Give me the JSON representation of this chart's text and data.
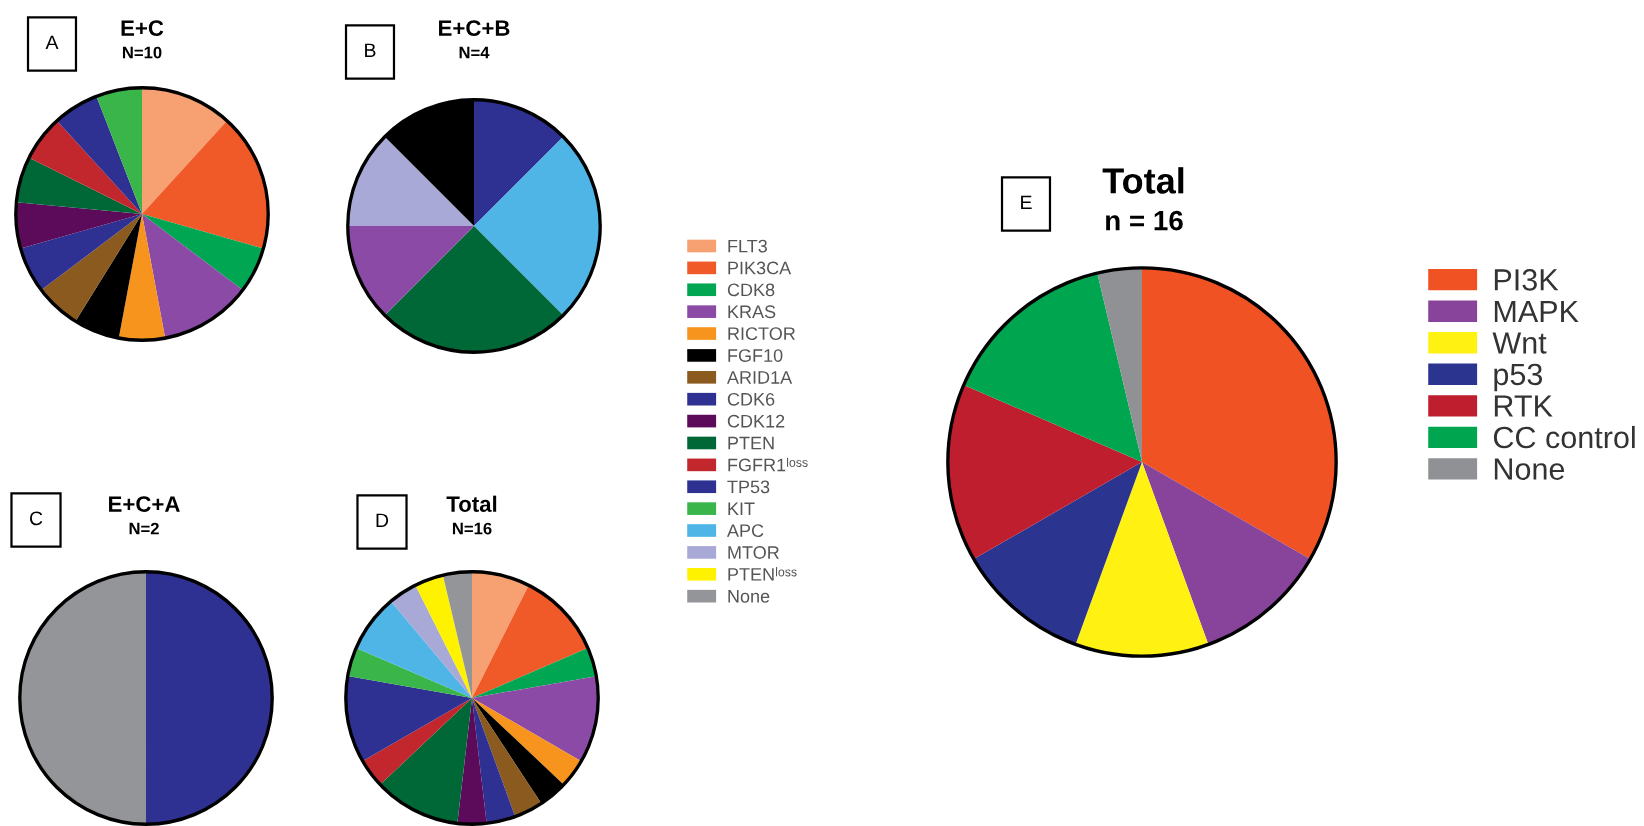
{
  "chart_data": [
    {
      "type": "pie",
      "title": "E+C",
      "subtitle": "N=10",
      "annotations": [
        "A"
      ],
      "categories": [
        null,
        null,
        null,
        null,
        null,
        null,
        null,
        null,
        null,
        null,
        null,
        null,
        null
      ],
      "values": [
        11.76,
        17.65,
        5.88,
        11.76,
        5.88,
        5.88,
        5.88,
        5.88,
        5.88,
        5.88,
        5.88,
        5.88,
        5.88
      ],
      "colors": [
        "#f7a072",
        "#f05a28",
        "#00a651",
        "#8b4aa6",
        "#f7941d",
        "#000000",
        "#8b5a1e",
        "#2e3192",
        "#5c0b5a",
        "#006837",
        "#c1272d",
        "#2e3192",
        "#39b54a"
      ]
    },
    {
      "type": "pie",
      "title": "E+C+B",
      "subtitle": "N=4",
      "annotations": [
        "B"
      ],
      "categories": [
        null,
        null,
        null,
        null,
        null,
        null
      ],
      "values": [
        12.5,
        25,
        25,
        12.5,
        12.5,
        12.5
      ],
      "colors": [
        "#2e3192",
        "#4fb4e6",
        "#006837",
        "#8b4aa6",
        "#a9a9d8",
        "#000000"
      ]
    },
    {
      "type": "pie",
      "title": "E+C+A",
      "subtitle": "N=2",
      "annotations": [
        "C"
      ],
      "categories": [
        null,
        null
      ],
      "values": [
        50,
        50
      ],
      "colors": [
        "#2e3192",
        "#939598"
      ]
    },
    {
      "type": "pie",
      "title": "Total",
      "subtitle": "N=16",
      "annotations": [
        "D"
      ],
      "legend": "right",
      "categories": [
        "FLT3",
        "PIK3CA",
        "CDK8",
        "KRAS",
        "RICTOR",
        "FGF10",
        "ARID1A",
        "CDK6",
        "CDK12",
        "PTEN",
        "FGFR1ˡᵒˢˢ",
        "TP53",
        "KIT",
        "APC",
        "MTOR",
        "PTENˡᵒˢˢ",
        "None"
      ],
      "values": [
        7.41,
        11.11,
        3.7,
        11.11,
        3.7,
        3.7,
        3.7,
        3.7,
        3.7,
        11.11,
        3.7,
        11.11,
        3.7,
        7.41,
        3.7,
        3.7,
        3.7
      ],
      "colors": [
        "#f7a072",
        "#f05a28",
        "#00a651",
        "#8b4aa6",
        "#f7941d",
        "#000000",
        "#8b5a1e",
        "#2e3192",
        "#5c0b5a",
        "#006837",
        "#c1272d",
        "#2e3192",
        "#39b54a",
        "#4fb4e6",
        "#a9a9d8",
        "#fff200",
        "#939598"
      ]
    },
    {
      "type": "pie",
      "title": "Total",
      "subtitle": "n = 16",
      "annotations": [
        "E"
      ],
      "legend": "right",
      "categories": [
        "PI3K",
        "MAPK",
        "Wnt",
        "p53",
        "RTK",
        "CC control",
        "None"
      ],
      "values": [
        33.33,
        11.11,
        11.11,
        11.11,
        14.81,
        14.81,
        3.7
      ],
      "colors": [
        "#f05223",
        "#87449a",
        "#fff212",
        "#2b3590",
        "#be1e2d",
        "#00a64f",
        "#8f9194"
      ]
    }
  ]
}
